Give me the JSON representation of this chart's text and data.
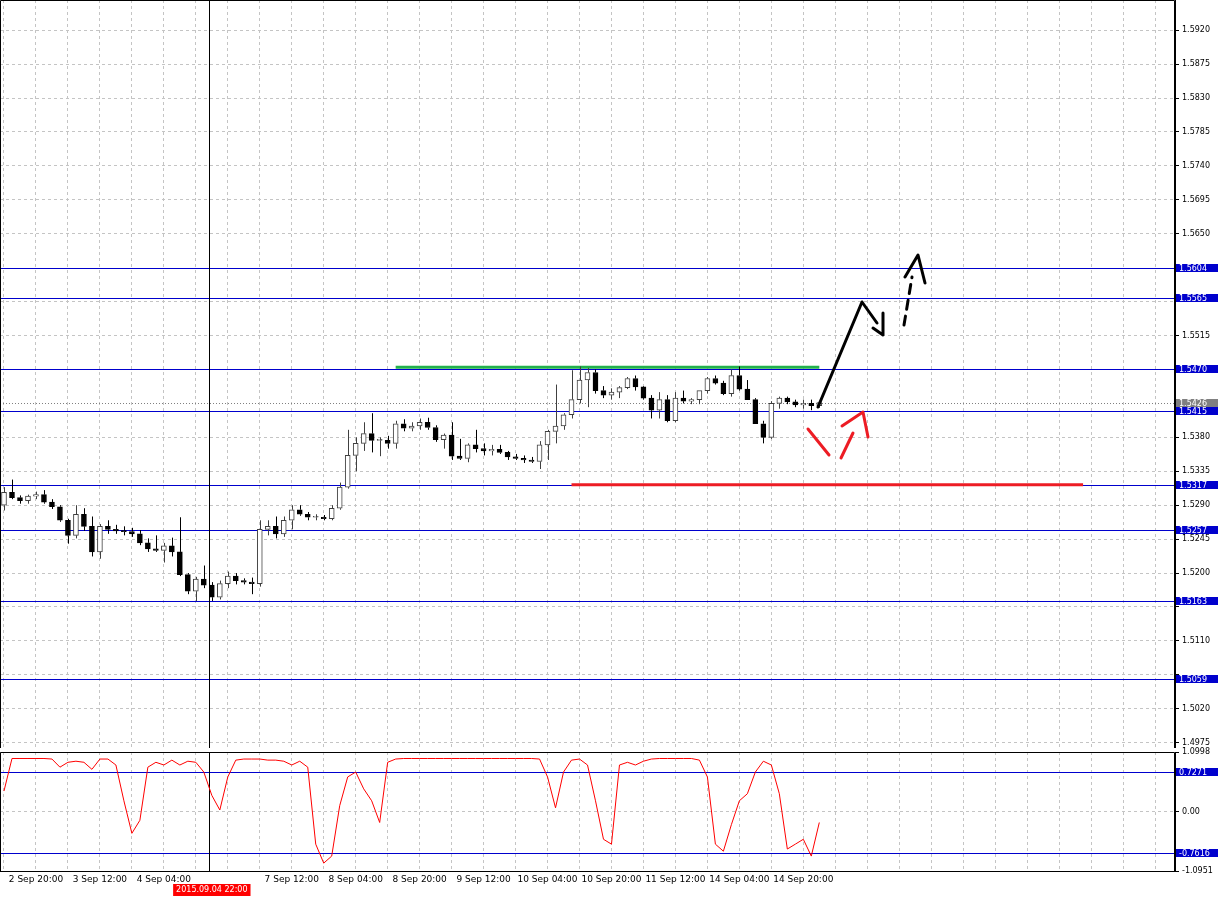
{
  "chart_data": [
    {
      "type": "candlestick",
      "categories": [
        null,
        null,
        null,
        null,
        "2 Sep 20:00",
        null,
        null,
        null,
        null,
        null,
        null,
        null,
        "3 Sep 12:00",
        null,
        null,
        null,
        null,
        null,
        null,
        null,
        "4 Sep 04:00",
        null,
        null,
        null,
        null,
        null,
        "2015.09.04 22:00",
        null,
        null,
        null,
        null,
        null,
        null,
        null,
        null,
        null,
        "7 Sep 12:00",
        null,
        null,
        null,
        null,
        null,
        null,
        null,
        "8 Sep 04:00",
        null,
        null,
        null,
        null,
        null,
        null,
        null,
        "8 Sep 20:00",
        null,
        null,
        null,
        null,
        null,
        null,
        null,
        "9 Sep 12:00",
        null,
        null,
        null,
        null,
        null,
        null,
        null,
        "10 Sep 04:00",
        null,
        null,
        null,
        null,
        null,
        null,
        null,
        "10 Sep 20:00",
        null,
        null,
        null,
        null,
        null,
        null,
        null,
        "11 Sep 12:00",
        null,
        null,
        null,
        null,
        null,
        null,
        null,
        "14 Sep 04:00",
        null,
        null,
        null,
        null,
        null,
        null,
        null,
        "14 Sep 20:00",
        null,
        null,
        null,
        null,
        null,
        null,
        null,
        null,
        null,
        null,
        null,
        null,
        null,
        null,
        null,
        null,
        null,
        null,
        null,
        null,
        null,
        null,
        null,
        null,
        null,
        null,
        null,
        null,
        null,
        null,
        null,
        null,
        null,
        null,
        null,
        null,
        null,
        null,
        null,
        null,
        null,
        null,
        null,
        null,
        null,
        null
      ],
      "ohlc": [
        [
          1.529,
          1.5314,
          1.5283,
          1.5307
        ],
        [
          1.5307,
          1.5324,
          1.5298,
          1.53
        ],
        [
          1.53,
          1.5303,
          1.5292,
          1.5296
        ],
        [
          1.5296,
          1.5304,
          1.5292,
          1.5302
        ],
        [
          1.5302,
          1.5308,
          1.5298,
          1.5304
        ],
        [
          1.5304,
          1.531,
          1.5292,
          1.5294
        ],
        [
          1.5294,
          1.5298,
          1.5285,
          1.5288
        ],
        [
          1.5288,
          1.529,
          1.5268,
          1.527
        ],
        [
          1.527,
          1.5272,
          1.5239,
          1.525
        ],
        [
          1.525,
          1.529,
          1.5246,
          1.5278
        ],
        [
          1.5278,
          1.5286,
          1.5256,
          1.5262
        ],
        [
          1.5262,
          1.5275,
          1.5222,
          1.5228
        ],
        [
          1.5228,
          1.5265,
          1.5219,
          1.5262
        ],
        [
          1.5262,
          1.527,
          1.5252,
          1.5258
        ],
        [
          1.5258,
          1.5264,
          1.5252,
          1.5256
        ],
        [
          1.5256,
          1.5262,
          1.525,
          1.5255
        ],
        [
          1.5255,
          1.526,
          1.5248,
          1.5252
        ],
        [
          1.5252,
          1.5257,
          1.5237,
          1.524
        ],
        [
          1.524,
          1.5246,
          1.5228,
          1.5232
        ],
        [
          1.5232,
          1.525,
          1.5228,
          1.523
        ],
        [
          1.523,
          1.524,
          1.5214,
          1.5236
        ],
        [
          1.5236,
          1.5247,
          1.5222,
          1.5228
        ],
        [
          1.5228,
          1.5274,
          1.5196,
          1.5198
        ],
        [
          1.5198,
          1.52,
          1.5172,
          1.5176
        ],
        [
          1.5176,
          1.5195,
          1.5163,
          1.5192
        ],
        [
          1.5192,
          1.521,
          1.518,
          1.5184
        ],
        [
          1.5184,
          1.5188,
          1.5163,
          1.5168
        ],
        [
          1.5168,
          1.519,
          1.5165,
          1.5186
        ],
        [
          1.5186,
          1.5202,
          1.518,
          1.5196
        ],
        [
          1.5196,
          1.52,
          1.5185,
          1.519
        ],
        [
          1.519,
          1.5193,
          1.5185,
          1.5188
        ],
        [
          1.5188,
          1.5194,
          1.5172,
          1.5186
        ],
        [
          1.5186,
          1.527,
          1.5182,
          1.5258
        ],
        [
          1.5258,
          1.527,
          1.525,
          1.5262
        ],
        [
          1.5262,
          1.5275,
          1.5246,
          1.5252
        ],
        [
          1.5252,
          1.5275,
          1.5248,
          1.527
        ],
        [
          1.527,
          1.529,
          1.5258,
          1.5284
        ],
        [
          1.5284,
          1.529,
          1.5276,
          1.5278
        ],
        [
          1.5278,
          1.5281,
          1.527,
          1.5274
        ],
        [
          1.5274,
          1.5278,
          1.527,
          1.5274
        ],
        [
          1.5274,
          1.5277,
          1.527,
          1.5272
        ],
        [
          1.5272,
          1.529,
          1.527,
          1.5286
        ],
        [
          1.5286,
          1.532,
          1.5284,
          1.5314
        ],
        [
          1.5314,
          1.539,
          1.5312,
          1.5356
        ],
        [
          1.5356,
          1.538,
          1.5335,
          1.5372
        ],
        [
          1.5372,
          1.54,
          1.5362,
          1.5385
        ],
        [
          1.5385,
          1.5412,
          1.536,
          1.5376
        ],
        [
          1.5376,
          1.538,
          1.5355,
          1.5376
        ],
        [
          1.5376,
          1.5382,
          1.5365,
          1.5372
        ],
        [
          1.5372,
          1.5402,
          1.5365,
          1.5398
        ],
        [
          1.5398,
          1.5404,
          1.5388,
          1.5392
        ],
        [
          1.5392,
          1.54,
          1.5388,
          1.5395
        ],
        [
          1.5395,
          1.5405,
          1.539,
          1.54
        ],
        [
          1.54,
          1.5406,
          1.539,
          1.5393
        ],
        [
          1.5393,
          1.5396,
          1.5374,
          1.5377
        ],
        [
          1.5377,
          1.5385,
          1.5365,
          1.5383
        ],
        [
          1.5383,
          1.54,
          1.535,
          1.5355
        ],
        [
          1.5355,
          1.5378,
          1.535,
          1.5352
        ],
        [
          1.5352,
          1.5372,
          1.5347,
          1.537
        ],
        [
          1.537,
          1.539,
          1.536,
          1.5365
        ],
        [
          1.5365,
          1.5372,
          1.5356,
          1.5362
        ],
        [
          1.5362,
          1.537,
          1.5356,
          1.5364
        ],
        [
          1.5364,
          1.537,
          1.5358,
          1.536
        ],
        [
          1.536,
          1.5362,
          1.535,
          1.5354
        ],
        [
          1.5354,
          1.5358,
          1.535,
          1.5352
        ],
        [
          1.5352,
          1.5356,
          1.5346,
          1.535
        ],
        [
          1.535,
          1.5354,
          1.5346,
          1.5348
        ],
        [
          1.5348,
          1.5375,
          1.5338,
          1.537
        ],
        [
          1.537,
          1.539,
          1.535,
          1.5388
        ],
        [
          1.5388,
          1.545,
          1.5372,
          1.5395
        ],
        [
          1.5395,
          1.5412,
          1.539,
          1.541
        ],
        [
          1.541,
          1.5469,
          1.5405,
          1.543
        ],
        [
          1.543,
          1.5474,
          1.5425,
          1.5456
        ],
        [
          1.5456,
          1.5472,
          1.542,
          1.5466
        ],
        [
          1.5466,
          1.547,
          1.5438,
          1.5442
        ],
        [
          1.5442,
          1.5448,
          1.5432,
          1.5436
        ],
        [
          1.5436,
          1.5445,
          1.543,
          1.544
        ],
        [
          1.544,
          1.5448,
          1.5432,
          1.5446
        ],
        [
          1.5446,
          1.546,
          1.5444,
          1.5458
        ],
        [
          1.5458,
          1.5462,
          1.5442,
          1.5447
        ],
        [
          1.5447,
          1.5448,
          1.543,
          1.5432
        ],
        [
          1.5432,
          1.5436,
          1.5405,
          1.5416
        ],
        [
          1.5416,
          1.544,
          1.5405,
          1.543
        ],
        [
          1.543,
          1.5436,
          1.54,
          1.5402
        ],
        [
          1.5402,
          1.544,
          1.54,
          1.5432
        ],
        [
          1.5432,
          1.5442,
          1.5425,
          1.5428
        ],
        [
          1.5428,
          1.5432,
          1.5424,
          1.543
        ],
        [
          1.543,
          1.5442,
          1.5424,
          1.5442
        ],
        [
          1.5442,
          1.546,
          1.5438,
          1.5458
        ],
        [
          1.5458,
          1.5462,
          1.545,
          1.5452
        ],
        [
          1.5452,
          1.5455,
          1.5436,
          1.5438
        ],
        [
          1.5438,
          1.547,
          1.5434,
          1.5462
        ],
        [
          1.5462,
          1.5474,
          1.5442,
          1.5444
        ],
        [
          1.5444,
          1.5456,
          1.543,
          1.543
        ],
        [
          1.543,
          1.5432,
          1.5398,
          1.5398
        ],
        [
          1.5398,
          1.5402,
          1.5372,
          1.538
        ],
        [
          1.538,
          1.5428,
          1.5378,
          1.5425
        ],
        [
          1.5425,
          1.5434,
          1.5418,
          1.5432
        ],
        [
          1.5432,
          1.5434,
          1.5424,
          1.5427
        ],
        [
          1.5427,
          1.543,
          1.542,
          1.5423
        ],
        [
          1.5423,
          1.543,
          1.5418,
          1.5425
        ],
        [
          1.5425,
          1.543,
          1.5416,
          1.5422
        ],
        [
          1.5422,
          1.5428,
          1.5419,
          1.5426
        ],
        null,
        null,
        null,
        null,
        null,
        null,
        null,
        null,
        null,
        null,
        null,
        null,
        null,
        null,
        null,
        null,
        null,
        null,
        null,
        null,
        null,
        null,
        null,
        null,
        null,
        null,
        null,
        null,
        null,
        null,
        null,
        null,
        null,
        null,
        null,
        null,
        null,
        null,
        null,
        null,
        null,
        null,
        null,
        null
      ],
      "series": [
        {
          "type": "line",
          "color": "#22b14c",
          "values": [
            null,
            null,
            null,
            null,
            null,
            null,
            null,
            null,
            null,
            null,
            null,
            null,
            null,
            null,
            null,
            null,
            null,
            null,
            null,
            null,
            null,
            null,
            null,
            null,
            null,
            null,
            null,
            null,
            null,
            null,
            null,
            null,
            null,
            null,
            null,
            null,
            null,
            null,
            null,
            null,
            null,
            null,
            null,
            null,
            null,
            null,
            null,
            null,
            null,
            1.5473,
            1.5473,
            1.5473,
            1.5473,
            1.5473,
            1.5473,
            1.5473,
            1.5473,
            1.5473,
            1.5473,
            1.5473,
            1.5473,
            1.5473,
            1.5473,
            1.5473,
            1.5473,
            1.5473,
            1.5473,
            1.5473,
            1.5473,
            1.5473,
            1.5473,
            1.5473,
            1.5473,
            1.5473,
            1.5473,
            1.5473,
            1.5473,
            1.5473,
            1.5473,
            1.5473,
            1.5473,
            1.5473,
            1.5473,
            1.5473,
            1.5473,
            1.5473,
            1.5473,
            1.5473,
            1.5473,
            1.5473,
            1.5473,
            1.5473,
            1.5473,
            1.5473,
            1.5473,
            1.5473,
            1.5473,
            1.5473,
            1.5473,
            1.5473,
            1.5473,
            1.5473,
            1.5473,
            null,
            null,
            null,
            null,
            null,
            null,
            null,
            null,
            null,
            null,
            null,
            null,
            null,
            null,
            null,
            null,
            null,
            null,
            null,
            null,
            null,
            null,
            null,
            null,
            null,
            null,
            null,
            null,
            null,
            null,
            null,
            null,
            null,
            null,
            null,
            null,
            null,
            null,
            null,
            null,
            null,
            null,
            null,
            null
          ]
        },
        {
          "type": "line",
          "color": "#ed1c24",
          "values": [
            null,
            null,
            null,
            null,
            null,
            null,
            null,
            null,
            null,
            null,
            null,
            null,
            null,
            null,
            null,
            null,
            null,
            null,
            null,
            null,
            null,
            null,
            null,
            null,
            null,
            null,
            null,
            null,
            null,
            null,
            null,
            null,
            null,
            null,
            null,
            null,
            null,
            null,
            null,
            null,
            null,
            null,
            null,
            null,
            null,
            null,
            null,
            null,
            null,
            null,
            null,
            null,
            null,
            null,
            null,
            null,
            null,
            null,
            null,
            null,
            null,
            null,
            null,
            null,
            null,
            null,
            null,
            null,
            null,
            null,
            null,
            1.5317,
            1.5317,
            1.5317,
            1.5317,
            1.5317,
            1.5317,
            1.5317,
            1.5317,
            1.5317,
            1.5317,
            1.5317,
            1.5317,
            1.5317,
            1.5317,
            1.5317,
            1.5317,
            1.5317,
            1.5317,
            1.5317,
            1.5317,
            1.5317,
            1.5317,
            1.5317,
            1.5317,
            1.5317,
            1.5317,
            1.5317,
            1.5317,
            1.5317,
            1.5317,
            1.5317,
            1.5317,
            1.5317,
            1.5317,
            1.5317,
            1.5317,
            1.5317,
            1.5317,
            1.5317,
            1.5317,
            1.5317,
            1.5317,
            1.5317,
            1.5317,
            1.5317,
            1.5317,
            1.5317,
            1.5317,
            1.5317,
            1.5317,
            1.5317,
            1.5317,
            1.5317,
            1.5317,
            1.5317,
            1.5317,
            1.5317,
            1.5317,
            1.5317,
            1.5317,
            1.5317,
            1.5317,
            1.5317,
            1.5317,
            1.5317,
            null,
            null,
            null,
            null,
            null,
            null,
            null,
            null,
            null,
            null,
            null
          ]
        }
      ],
      "ylim": [
        1.4968,
        1.596
      ],
      "yticks": [
        {
          "value": 1.592,
          "label": "1.5920"
        },
        {
          "value": 1.5875,
          "label": "1.5875"
        },
        {
          "value": 1.583,
          "label": "1.5830"
        },
        {
          "value": 1.5785,
          "label": "1.5785"
        },
        {
          "value": 1.574,
          "label": "1.5740"
        },
        {
          "value": 1.5695,
          "label": "1.5695"
        },
        {
          "value": 1.565,
          "label": "1.5650"
        },
        {
          "value": 1.556,
          "label": null
        },
        {
          "value": 1.5515,
          "label": "1.5515"
        },
        {
          "value": 1.538,
          "label": "1.5380"
        },
        {
          "value": 1.5335,
          "label": "1.5335"
        },
        {
          "value": 1.529,
          "label": "1.5290"
        },
        {
          "value": 1.5245,
          "label": "1.5245"
        },
        {
          "value": 1.52,
          "label": "1.5200"
        },
        {
          "value": 1.5155,
          "label": null
        },
        {
          "value": 1.511,
          "label": "1.5110"
        },
        {
          "value": 1.5065,
          "label": null
        },
        {
          "value": 1.502,
          "label": "1.5020"
        },
        {
          "value": 1.4975,
          "label": "1.4975"
        }
      ],
      "ref_lines": [
        {
          "axis": "y",
          "value": 1.5604,
          "label": "1.5604",
          "color": "#0000cd"
        },
        {
          "axis": "y",
          "value": 1.5565,
          "label": "1.5565",
          "color": "#0000cd"
        },
        {
          "axis": "y",
          "value": 1.547,
          "label": "1.5470",
          "color": "#0000cd"
        },
        {
          "axis": "y",
          "value": 1.5426,
          "label": "1.5426",
          "color": "#808080",
          "line_style": "dotted"
        },
        {
          "axis": "y",
          "value": 1.5415,
          "label": "1.5415",
          "color": "#0000cd"
        },
        {
          "axis": "y",
          "value": 1.5317,
          "label": "1.5317",
          "color": "#0000cd"
        },
        {
          "axis": "y",
          "value": 1.5257,
          "label": "1.5257",
          "color": "#0000cd"
        },
        {
          "axis": "y",
          "value": 1.5163,
          "label": "1.5163",
          "color": "#0000cd"
        },
        {
          "axis": "y",
          "value": 1.5059,
          "label": "1.5059",
          "color": "#0000cd"
        },
        {
          "axis": "x",
          "value": "2015.09.04 22:00",
          "color": "#000000"
        }
      ],
      "grid": true,
      "legend": false,
      "tick_labels": "y"
    },
    {
      "type": "line",
      "categories": [
        null,
        null,
        null,
        null,
        "2 Sep 20:00",
        null,
        null,
        null,
        null,
        null,
        null,
        null,
        "3 Sep 12:00",
        null,
        null,
        null,
        null,
        null,
        null,
        null,
        "4 Sep 04:00",
        null,
        null,
        null,
        null,
        null,
        "2015.09.04 22:00",
        null,
        null,
        null,
        null,
        null,
        null,
        null,
        null,
        null,
        "7 Sep 12:00",
        null,
        null,
        null,
        null,
        null,
        null,
        null,
        "8 Sep 04:00",
        null,
        null,
        null,
        null,
        null,
        null,
        null,
        "8 Sep 20:00",
        null,
        null,
        null,
        null,
        null,
        null,
        null,
        "9 Sep 12:00",
        null,
        null,
        null,
        null,
        null,
        null,
        null,
        "10 Sep 04:00",
        null,
        null,
        null,
        null,
        null,
        null,
        null,
        "10 Sep 20:00",
        null,
        null,
        null,
        null,
        null,
        null,
        null,
        "11 Sep 12:00",
        null,
        null,
        null,
        null,
        null,
        null,
        null,
        "14 Sep 04:00",
        null,
        null,
        null,
        null,
        null,
        null,
        null,
        "14 Sep 20:00",
        null,
        null,
        null,
        null,
        null,
        null,
        null,
        null,
        null,
        null,
        null,
        null,
        null,
        null,
        null,
        null,
        null,
        null,
        null,
        null,
        null,
        null,
        null,
        null,
        null,
        null,
        null,
        null,
        null,
        null,
        null,
        null,
        null,
        null,
        null,
        null,
        null,
        null,
        null,
        null,
        null,
        null,
        null,
        null,
        null,
        null
      ],
      "series": [
        {
          "color": "#ff0000",
          "values": [
            0.38,
            0.98,
            0.98,
            0.98,
            0.98,
            0.98,
            0.97,
            0.82,
            0.91,
            0.93,
            0.91,
            0.78,
            0.97,
            0.97,
            0.86,
            0.2,
            -0.4,
            -0.16,
            0.82,
            0.91,
            0.86,
            0.95,
            0.86,
            0.93,
            0.91,
            0.73,
            0.3,
            0.03,
            0.64,
            0.95,
            0.97,
            0.97,
            0.97,
            0.95,
            0.95,
            0.93,
            0.86,
            0.93,
            0.82,
            -0.6,
            -0.95,
            -0.82,
            0.11,
            0.64,
            0.73,
            0.42,
            0.2,
            -0.2,
            0.91,
            0.97,
            0.98,
            0.98,
            0.98,
            0.98,
            0.98,
            0.98,
            0.98,
            0.98,
            0.98,
            0.98,
            0.98,
            0.98,
            0.98,
            0.98,
            0.98,
            0.98,
            0.98,
            0.97,
            0.64,
            0.07,
            0.73,
            0.95,
            0.97,
            0.86,
            0.2,
            -0.51,
            -0.6,
            0.86,
            0.91,
            0.86,
            0.93,
            0.97,
            0.98,
            0.98,
            0.98,
            0.98,
            0.98,
            0.95,
            0.64,
            -0.6,
            -0.73,
            -0.24,
            0.2,
            0.33,
            0.73,
            0.93,
            0.86,
            0.33,
            -0.69,
            -0.6,
            -0.51,
            -0.82,
            -0.2,
            null,
            null,
            null,
            null,
            null,
            null,
            null,
            null,
            null,
            null,
            null,
            null,
            null,
            null,
            null,
            null,
            null,
            null,
            null,
            null,
            null,
            null,
            null,
            null,
            null,
            null,
            null,
            null,
            null,
            null,
            null,
            null,
            null,
            null,
            null,
            null,
            null,
            null,
            null,
            null,
            null,
            null,
            null,
            null
          ]
        }
      ],
      "ylim": [
        -1.0951,
        1.0998
      ],
      "yticks": [
        1.0998,
        {
          "value": 0,
          "label": "0.00"
        },
        -1.0951
      ],
      "ref_lines": [
        {
          "axis": "y",
          "value": 0.7271,
          "label": "0.7271",
          "color": "#0000cd"
        },
        {
          "axis": "y",
          "value": -0.7616,
          "label": "-0.7616",
          "color": "#0000cd"
        },
        {
          "axis": "x",
          "value": "2015.09.04 22:00",
          "color": "#000000"
        }
      ],
      "grid": true,
      "legend": false
    }
  ]
}
